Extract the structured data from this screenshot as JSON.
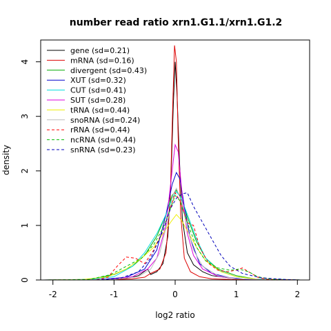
{
  "chart_data": {
    "type": "line",
    "title": "number read ratio xrn1.G1.1/xrn1.G1.2",
    "xlabel": "log2 ratio",
    "ylabel": "density",
    "xlim": [
      -2.2,
      2.2
    ],
    "ylim": [
      0,
      4.4
    ],
    "xticks": [
      -2,
      -1,
      0,
      1,
      2
    ],
    "yticks": [
      0,
      1,
      2,
      3,
      4
    ],
    "legend_position": "top-left",
    "series": [
      {
        "name": "gene (sd=0.21)",
        "color": "#000000",
        "dash": "solid",
        "points": [
          [
            -2.15,
            0
          ],
          [
            -1.2,
            0.005
          ],
          [
            -0.8,
            0.03
          ],
          [
            -0.6,
            0.08
          ],
          [
            -0.45,
            0.2
          ],
          [
            -0.4,
            0.1
          ],
          [
            -0.3,
            0.15
          ],
          [
            -0.2,
            0.3
          ],
          [
            -0.12,
            0.8
          ],
          [
            -0.07,
            1.8
          ],
          [
            -0.03,
            3.2
          ],
          [
            0,
            4.0
          ],
          [
            0.03,
            3.4
          ],
          [
            0.07,
            2.2
          ],
          [
            0.12,
            1.1
          ],
          [
            0.2,
            0.5
          ],
          [
            0.3,
            0.28
          ],
          [
            0.45,
            0.15
          ],
          [
            0.6,
            0.08
          ],
          [
            0.8,
            0.05
          ],
          [
            1.0,
            0.02
          ],
          [
            1.3,
            0.005
          ],
          [
            2.05,
            0
          ]
        ]
      },
      {
        "name": "mRNA (sd=0.16)",
        "color": "#dd0000",
        "dash": "solid",
        "points": [
          [
            -2.15,
            0
          ],
          [
            -1.2,
            0
          ],
          [
            -0.7,
            0.02
          ],
          [
            -0.5,
            0.05
          ],
          [
            -0.4,
            0.12
          ],
          [
            -0.25,
            0.2
          ],
          [
            -0.15,
            0.5
          ],
          [
            -0.08,
            1.5
          ],
          [
            -0.04,
            3.2
          ],
          [
            -0.01,
            4.3
          ],
          [
            0.02,
            4.0
          ],
          [
            0.05,
            2.6
          ],
          [
            0.09,
            1.2
          ],
          [
            0.15,
            0.4
          ],
          [
            0.25,
            0.15
          ],
          [
            0.4,
            0.06
          ],
          [
            0.6,
            0.02
          ],
          [
            0.9,
            0.01
          ],
          [
            2.05,
            0
          ]
        ]
      },
      {
        "name": "divergent (sd=0.43)",
        "color": "#00aa00",
        "dash": "solid",
        "points": [
          [
            -2.15,
            0
          ],
          [
            -1.4,
            0.01
          ],
          [
            -1.0,
            0.1
          ],
          [
            -0.7,
            0.25
          ],
          [
            -0.5,
            0.45
          ],
          [
            -0.3,
            0.8
          ],
          [
            -0.15,
            1.2
          ],
          [
            -0.05,
            1.55
          ],
          [
            0.02,
            1.65
          ],
          [
            0.1,
            1.5
          ],
          [
            0.2,
            1.15
          ],
          [
            0.35,
            0.7
          ],
          [
            0.5,
            0.4
          ],
          [
            0.7,
            0.2
          ],
          [
            1.0,
            0.08
          ],
          [
            1.3,
            0.02
          ],
          [
            2.05,
            0
          ]
        ]
      },
      {
        "name": "XUT (sd=0.32)",
        "color": "#0000cc",
        "dash": "solid",
        "points": [
          [
            -2.15,
            0
          ],
          [
            -1.2,
            0.01
          ],
          [
            -0.8,
            0.05
          ],
          [
            -0.5,
            0.2
          ],
          [
            -0.3,
            0.55
          ],
          [
            -0.15,
            1.2
          ],
          [
            -0.05,
            1.75
          ],
          [
            0.02,
            1.97
          ],
          [
            0.08,
            1.85
          ],
          [
            0.15,
            1.35
          ],
          [
            0.25,
            0.75
          ],
          [
            0.4,
            0.3
          ],
          [
            0.6,
            0.12
          ],
          [
            0.9,
            0.04
          ],
          [
            1.2,
            0.01
          ],
          [
            2.05,
            0
          ]
        ]
      },
      {
        "name": "CUT (sd=0.41)",
        "color": "#00dddd",
        "dash": "solid",
        "points": [
          [
            -2.15,
            0
          ],
          [
            -1.4,
            0.01
          ],
          [
            -1.0,
            0.06
          ],
          [
            -0.7,
            0.25
          ],
          [
            -0.5,
            0.5
          ],
          [
            -0.3,
            0.85
          ],
          [
            -0.15,
            1.2
          ],
          [
            -0.05,
            1.5
          ],
          [
            0.02,
            1.62
          ],
          [
            0.1,
            1.5
          ],
          [
            0.2,
            1.2
          ],
          [
            0.35,
            0.75
          ],
          [
            0.5,
            0.4
          ],
          [
            0.7,
            0.18
          ],
          [
            1.0,
            0.06
          ],
          [
            1.3,
            0.02
          ],
          [
            2.05,
            0
          ]
        ]
      },
      {
        "name": "SUT (sd=0.28)",
        "color": "#dd00dd",
        "dash": "solid",
        "points": [
          [
            -2.15,
            0
          ],
          [
            -1.1,
            0.01
          ],
          [
            -0.7,
            0.06
          ],
          [
            -0.45,
            0.2
          ],
          [
            -0.3,
            0.4
          ],
          [
            -0.15,
            1.0
          ],
          [
            -0.06,
            1.9
          ],
          [
            0,
            2.48
          ],
          [
            0.05,
            2.35
          ],
          [
            0.12,
            1.5
          ],
          [
            0.2,
            0.85
          ],
          [
            0.3,
            0.45
          ],
          [
            0.45,
            0.2
          ],
          [
            0.7,
            0.07
          ],
          [
            1.0,
            0.02
          ],
          [
            2.05,
            0
          ]
        ]
      },
      {
        "name": "tRNA (sd=0.44)",
        "color": "#eeee00",
        "dash": "solid",
        "points": [
          [
            -2.15,
            0
          ],
          [
            -1.5,
            0.01
          ],
          [
            -1.1,
            0.06
          ],
          [
            -0.8,
            0.2
          ],
          [
            -0.55,
            0.4
          ],
          [
            -0.35,
            0.6
          ],
          [
            -0.2,
            0.85
          ],
          [
            -0.08,
            1.05
          ],
          [
            0.02,
            1.2
          ],
          [
            0.1,
            1.1
          ],
          [
            0.2,
            0.9
          ],
          [
            0.35,
            0.6
          ],
          [
            0.5,
            0.35
          ],
          [
            0.75,
            0.15
          ],
          [
            1.0,
            0.06
          ],
          [
            1.4,
            0.01
          ],
          [
            2.05,
            0
          ]
        ]
      },
      {
        "name": "snoRNA (sd=0.24)",
        "color": "#bbbbbb",
        "dash": "solid",
        "points": [
          [
            -2.15,
            0
          ],
          [
            -1.0,
            0.01
          ],
          [
            -0.6,
            0.06
          ],
          [
            -0.4,
            0.2
          ],
          [
            -0.25,
            0.5
          ],
          [
            -0.12,
            1.1
          ],
          [
            -0.04,
            1.55
          ],
          [
            0.02,
            1.68
          ],
          [
            0.1,
            1.45
          ],
          [
            0.2,
            0.95
          ],
          [
            0.3,
            0.55
          ],
          [
            0.45,
            0.25
          ],
          [
            0.7,
            0.08
          ],
          [
            1.0,
            0.02
          ],
          [
            2.05,
            0
          ]
        ]
      },
      {
        "name": "rRNA (sd=0.44)",
        "color": "#ff0000",
        "dash": "dashed",
        "points": [
          [
            -2.15,
            0
          ],
          [
            -1.3,
            0
          ],
          [
            -1.1,
            0.05
          ],
          [
            -0.95,
            0.25
          ],
          [
            -0.8,
            0.42
          ],
          [
            -0.65,
            0.4
          ],
          [
            -0.5,
            0.3
          ],
          [
            -0.35,
            0.55
          ],
          [
            -0.2,
            0.9
          ],
          [
            -0.08,
            1.3
          ],
          [
            0,
            1.6
          ],
          [
            0.08,
            1.45
          ],
          [
            0.2,
            1.05
          ],
          [
            0.3,
            1.0
          ],
          [
            0.4,
            0.6
          ],
          [
            0.55,
            0.3
          ],
          [
            0.7,
            0.18
          ],
          [
            0.85,
            0.15
          ],
          [
            1.0,
            0.18
          ],
          [
            1.1,
            0.22
          ],
          [
            1.2,
            0.15
          ],
          [
            1.35,
            0.05
          ],
          [
            1.5,
            0.01
          ],
          [
            2.05,
            0
          ]
        ]
      },
      {
        "name": "ncRNA (sd=0.44)",
        "color": "#00bb00",
        "dash": "dashed",
        "points": [
          [
            -2.15,
            0
          ],
          [
            -1.4,
            0.01
          ],
          [
            -1.05,
            0.1
          ],
          [
            -0.8,
            0.25
          ],
          [
            -0.55,
            0.4
          ],
          [
            -0.35,
            0.65
          ],
          [
            -0.2,
            0.95
          ],
          [
            -0.08,
            1.3
          ],
          [
            0,
            1.55
          ],
          [
            0.08,
            1.45
          ],
          [
            0.2,
            1.05
          ],
          [
            0.35,
            0.6
          ],
          [
            0.5,
            0.35
          ],
          [
            0.7,
            0.22
          ],
          [
            0.9,
            0.18
          ],
          [
            1.05,
            0.2
          ],
          [
            1.2,
            0.15
          ],
          [
            1.35,
            0.06
          ],
          [
            1.6,
            0.01
          ],
          [
            2.05,
            0
          ]
        ]
      },
      {
        "name": "snRNA (sd=0.23)",
        "color": "#0000bb",
        "dash": "dashed",
        "points": [
          [
            -2.15,
            0
          ],
          [
            -1.3,
            0
          ],
          [
            -0.9,
            0.03
          ],
          [
            -0.6,
            0.15
          ],
          [
            -0.4,
            0.4
          ],
          [
            -0.2,
            0.9
          ],
          [
            -0.08,
            1.3
          ],
          [
            0.02,
            1.5
          ],
          [
            0.12,
            1.58
          ],
          [
            0.2,
            1.6
          ],
          [
            0.3,
            1.35
          ],
          [
            0.45,
            1.05
          ],
          [
            0.6,
            0.75
          ],
          [
            0.75,
            0.45
          ],
          [
            0.9,
            0.25
          ],
          [
            1.1,
            0.12
          ],
          [
            1.4,
            0.04
          ],
          [
            1.8,
            0.01
          ],
          [
            2.05,
            0
          ]
        ]
      }
    ]
  }
}
